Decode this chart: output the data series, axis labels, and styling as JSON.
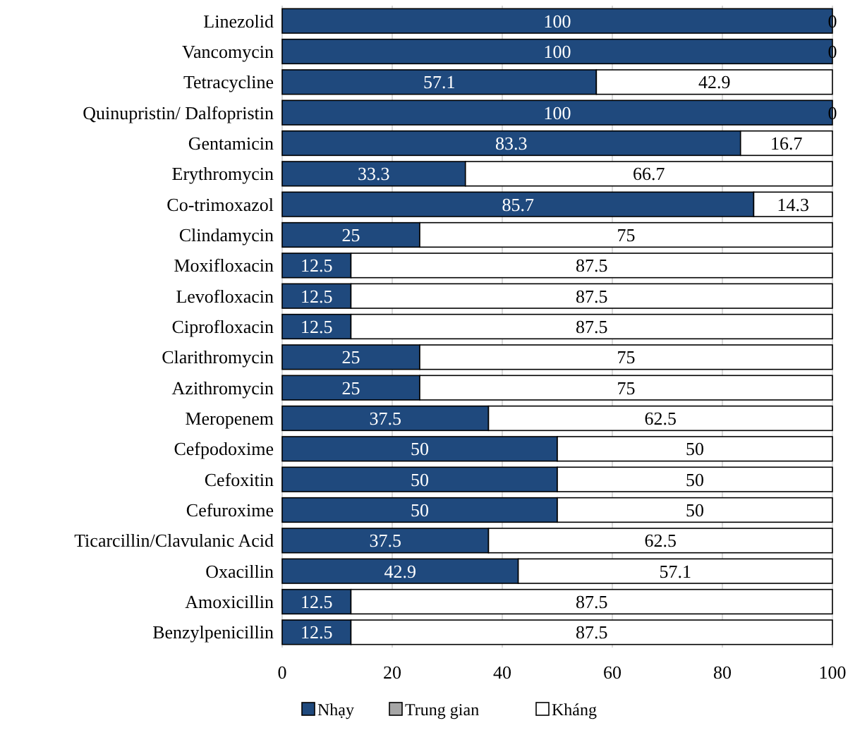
{
  "chart_data": {
    "type": "bar",
    "orientation": "horizontal",
    "stacked": true,
    "data_labels": true,
    "grid": "x",
    "legend": "bottom",
    "categories": [
      "Linezolid",
      "Vancomycin",
      "Tetracycline",
      "Quinupristin/ Dalfopristin",
      "Gentamicin",
      "Erythromycin",
      "Co-trimoxazol",
      "Clindamycin",
      "Moxifloxacin",
      "Levofloxacin",
      "Ciprofloxacin",
      "Clarithromycin",
      "Azithromycin",
      "Meropenem",
      "Cefpodoxime",
      "Cefoxitin",
      "Cefuroxime",
      "Ticarcillin/Clavulanic Acid",
      "Oxacillin",
      "Amoxicillin",
      "Benzylpenicillin"
    ],
    "xlim": [
      0,
      100
    ],
    "xticks": [
      0,
      20,
      40,
      60,
      80,
      100
    ],
    "series": [
      {
        "name": "Nhạy",
        "color": "#1f497d",
        "values": [
          100,
          100,
          57.1,
          100,
          83.3,
          33.3,
          85.7,
          25,
          12.5,
          12.5,
          12.5,
          25,
          25,
          37.5,
          50,
          50,
          50,
          37.5,
          42.9,
          12.5,
          12.5
        ]
      },
      {
        "name": "Trung gian",
        "color": "#a6a6a6",
        "values": [
          null,
          null,
          null,
          null,
          null,
          null,
          null,
          null,
          null,
          null,
          null,
          null,
          null,
          null,
          null,
          null,
          null,
          null,
          null,
          null,
          null
        ]
      },
      {
        "name": "Kháng",
        "color": "#ffffff",
        "values": [
          0,
          0,
          42.9,
          0,
          16.7,
          66.7,
          14.3,
          75,
          87.5,
          87.5,
          87.5,
          75,
          75,
          62.5,
          50,
          50,
          50,
          62.5,
          57.1,
          87.5,
          87.5
        ]
      }
    ]
  }
}
